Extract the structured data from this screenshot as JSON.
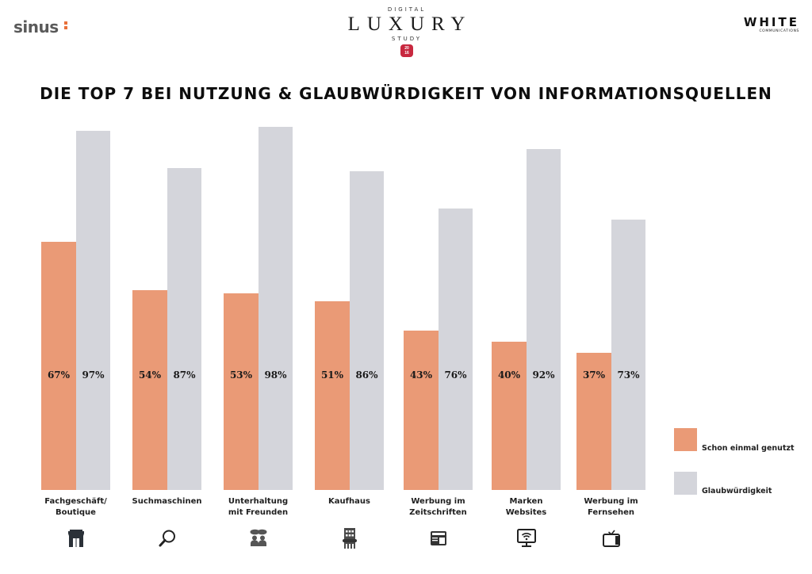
{
  "header": {
    "left_logo": "sinus",
    "center_logo": {
      "top": "DIGITAL",
      "main": "LUXURY",
      "bottom": "STUDY",
      "badge_line1": "20",
      "badge_line2": "16"
    },
    "right_logo": {
      "main": "WHITE",
      "sub": "COMMUNICATIONS"
    },
    "title": "DIE TOP 7 BEI NUTZUNG & GLAUBWÜRDIGKEIT VON INFORMATIONSQUELLEN"
  },
  "colors": {
    "used": "#ea9a76",
    "credibility": "#d4d5db",
    "sinus_accent": "#e8703a",
    "badge": "#c8283f"
  },
  "legend": {
    "used": "Schon einmal genutzt",
    "credibility": "Glaubwürdigkeit"
  },
  "categories": [
    {
      "label_line1": "Fachgeschäft/",
      "label_line2": "Boutique",
      "used": "67%",
      "cred": "97%",
      "icon": "storefront-icon"
    },
    {
      "label_line1": "Suchmaschinen",
      "label_line2": "",
      "used": "54%",
      "cred": "87%",
      "icon": "magnifier-icon"
    },
    {
      "label_line1": "Unterhaltung",
      "label_line2": "mit Freunden",
      "used": "53%",
      "cred": "98%",
      "icon": "people-chat-icon"
    },
    {
      "label_line1": "Kaufhaus",
      "label_line2": "",
      "used": "51%",
      "cred": "86%",
      "icon": "department-store-icon"
    },
    {
      "label_line1": "Werbung im",
      "label_line2": "Zeitschriften",
      "used": "43%",
      "cred": "76%",
      "icon": "newspaper-icon"
    },
    {
      "label_line1": "Marken",
      "label_line2": "Websites",
      "used": "40%",
      "cred": "92%",
      "icon": "monitor-wifi-icon"
    },
    {
      "label_line1": "Werbung im",
      "label_line2": "Fernsehen",
      "used": "37%",
      "cred": "73%",
      "icon": "tv-icon"
    }
  ],
  "chart_data": {
    "type": "bar",
    "title": "DIE TOP 7 BEI NUTZUNG & GLAUBWÜRDIGKEIT VON INFORMATIONSQUELLEN",
    "categories": [
      "Fachgeschäft/Boutique",
      "Suchmaschinen",
      "Unterhaltung mit Freunden",
      "Kaufhaus",
      "Werbung im Zeitschriften",
      "Marken Websites",
      "Werbung im Fernsehen"
    ],
    "series": [
      {
        "name": "Schon einmal genutzt",
        "values": [
          67,
          54,
          53,
          51,
          43,
          40,
          37
        ],
        "color": "#ea9a76"
      },
      {
        "name": "Glaubwürdigkeit",
        "values": [
          97,
          87,
          98,
          86,
          76,
          92,
          73
        ],
        "color": "#d4d5db"
      }
    ],
    "xlabel": "",
    "ylabel": "",
    "ylim": [
      0,
      100
    ],
    "grid": false,
    "legend_position": "right-bottom",
    "value_unit": "%"
  }
}
